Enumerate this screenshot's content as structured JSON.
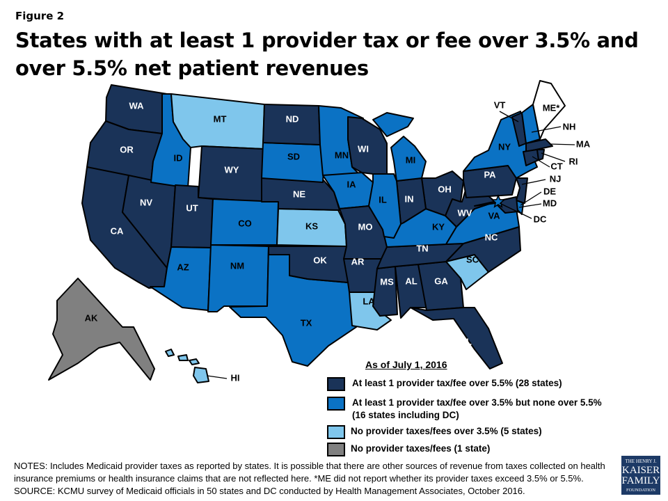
{
  "figure_label": "Figure 2",
  "title": "States with at least 1 provider tax or fee over 3.5% and over 5.5% net patient revenues",
  "colors": {
    "over_5_5": "#1a3358",
    "over_3_5": "#0b72c4",
    "none_over_3_5": "#7fc6ec",
    "none": "#808080",
    "not_reported": "#ffffff"
  },
  "legend": {
    "title": "As of July 1, 2016",
    "items": [
      {
        "key": "over_5_5",
        "label": "At least 1 provider tax/fee over 5.5% (28 states)"
      },
      {
        "key": "over_3_5",
        "label": "At least 1 provider tax/fee over 3.5% but none over 5.5%",
        "label2": "(16 states including DC)"
      },
      {
        "key": "none_over_3_5",
        "label": "No provider taxes/fees over 3.5% (5 states)"
      },
      {
        "key": "none",
        "label": "No provider taxes/fees (1 state)"
      }
    ]
  },
  "states": {
    "WA": "over_5_5",
    "OR": "over_5_5",
    "CA": "over_5_5",
    "NV": "over_5_5",
    "UT": "over_5_5",
    "WY": "over_5_5",
    "ND": "over_5_5",
    "NE": "over_5_5",
    "OK": "over_5_5",
    "AR": "over_5_5",
    "MO": "over_5_5",
    "WI": "over_5_5",
    "IN": "over_5_5",
    "OH": "over_5_5",
    "TN": "over_5_5",
    "MS": "over_5_5",
    "AL": "over_5_5",
    "GA": "over_5_5",
    "FL": "over_5_5",
    "NC": "over_5_5",
    "PA": "over_5_5",
    "WV": "over_5_5",
    "VT": "over_5_5",
    "MA": "over_5_5",
    "RI": "over_5_5",
    "CT": "over_5_5",
    "NJ": "over_5_5",
    "MD": "over_5_5",
    "ID": "over_3_5",
    "SD": "over_3_5",
    "MN": "over_3_5",
    "IA": "over_3_5",
    "IL": "over_3_5",
    "MI": "over_3_5",
    "CO": "over_3_5",
    "AZ": "over_3_5",
    "NM": "over_3_5",
    "TX": "over_3_5",
    "KY": "over_3_5",
    "VA": "over_3_5",
    "NY": "over_3_5",
    "NH": "over_3_5",
    "DE": "over_3_5",
    "DC": "over_3_5",
    "MT": "none_over_3_5",
    "KS": "none_over_3_5",
    "LA": "none_over_3_5",
    "SC": "none_over_3_5",
    "HI": "none_over_3_5",
    "AK": "none",
    "ME": "not_reported"
  },
  "state_labels": {
    "ME": "ME*"
  },
  "notes": [
    "NOTES: Includes Medicaid provider taxes as reported by states. It is possible that there are other sources of revenue from taxes collected on health insurance premiums or health insurance claims that are not reflected here. *ME did not report whether its provider taxes exceed 3.5% or 5.5%.",
    "SOURCE: KCMU survey of Medicaid officials in 50 states and DC conducted by Health Management Associates, October 2016."
  ],
  "logo": {
    "line1": "THE HENRY J.",
    "line2": "KAISER",
    "line3": "FAMILY",
    "line4": "FOUNDATION"
  }
}
